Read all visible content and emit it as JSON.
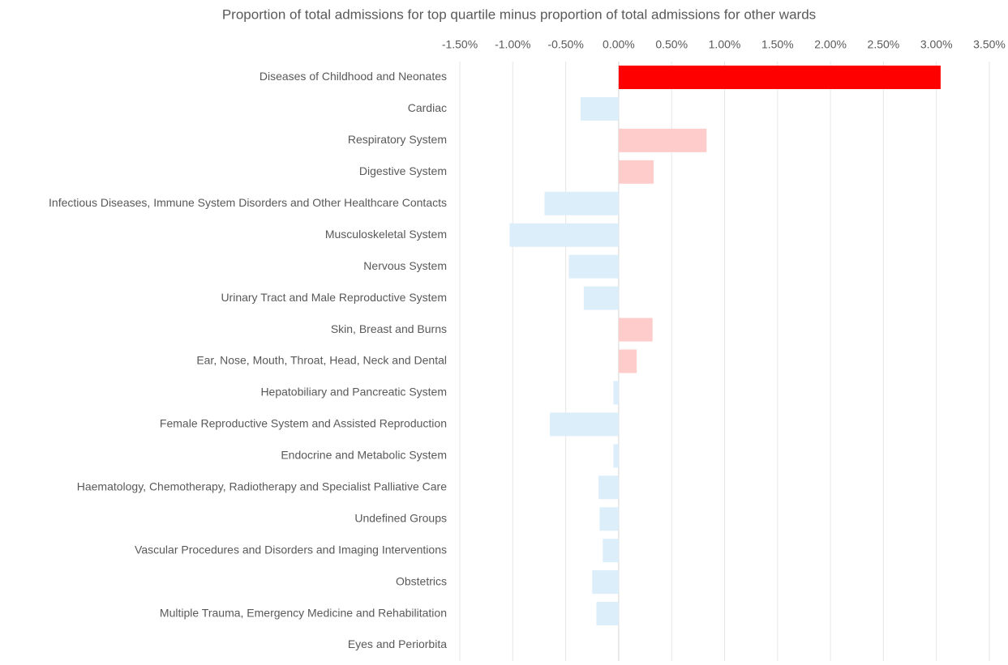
{
  "chart_data": {
    "type": "bar",
    "orientation": "horizontal",
    "title": "Proportion of total admissions for top quartile minus proportion of total admissions for other wards",
    "categories": [
      "Diseases of Childhood and Neonates",
      "Cardiac",
      "Respiratory System",
      "Digestive System",
      "Infectious Diseases, Immune System Disorders and Other Healthcare Contacts",
      "Musculoskeletal System",
      "Nervous System",
      "Urinary Tract and Male Reproductive System",
      "Skin, Breast and Burns",
      "Ear, Nose, Mouth, Throat, Head, Neck and Dental",
      "Hepatobiliary and Pancreatic System",
      "Female Reproductive System and Assisted Reproduction",
      "Endocrine and Metabolic System",
      "Haematology, Chemotherapy, Radiotherapy and Specialist Palliative Care",
      "Undefined Groups",
      "Vascular Procedures and Disorders and Imaging Interventions",
      "Obstetrics",
      "Multiple Trauma, Emergency Medicine and Rehabilitation",
      "Eyes and Periorbita"
    ],
    "values": [
      3.04,
      -0.36,
      0.83,
      0.33,
      -0.7,
      -1.03,
      -0.47,
      -0.33,
      0.32,
      0.17,
      -0.05,
      -0.65,
      -0.05,
      -0.19,
      -0.18,
      -0.15,
      -0.25,
      -0.21,
      0
    ],
    "colors": [
      "#ff0000",
      "#dceefa",
      "#ffcccc",
      "#ffcccc",
      "#dceefa",
      "#dceefa",
      "#dceefa",
      "#dceefa",
      "#ffcccc",
      "#ffcccc",
      "#dceefa",
      "#dceefa",
      "#dceefa",
      "#dceefa",
      "#dceefa",
      "#dceefa",
      "#dceefa",
      "#dceefa",
      "#dceefa"
    ],
    "xlim": [
      -1.5,
      3.5
    ],
    "xticks": [
      {
        "value": -1.5,
        "label": "-1.50%"
      },
      {
        "value": -1,
        "label": "-1.00%"
      },
      {
        "value": -0.5,
        "label": "-0.50%"
      },
      {
        "value": 0,
        "label": "0.00%"
      },
      {
        "value": 0.5,
        "label": "0.50%"
      },
      {
        "value": 1,
        "label": "1.00%"
      },
      {
        "value": 1.5,
        "label": "1.50%"
      },
      {
        "value": 2,
        "label": "2.00%"
      },
      {
        "value": 2.5,
        "label": "2.50%"
      },
      {
        "value": 3,
        "label": "3.00%"
      },
      {
        "value": 3.5,
        "label": "3.50%"
      }
    ],
    "grid": true
  }
}
